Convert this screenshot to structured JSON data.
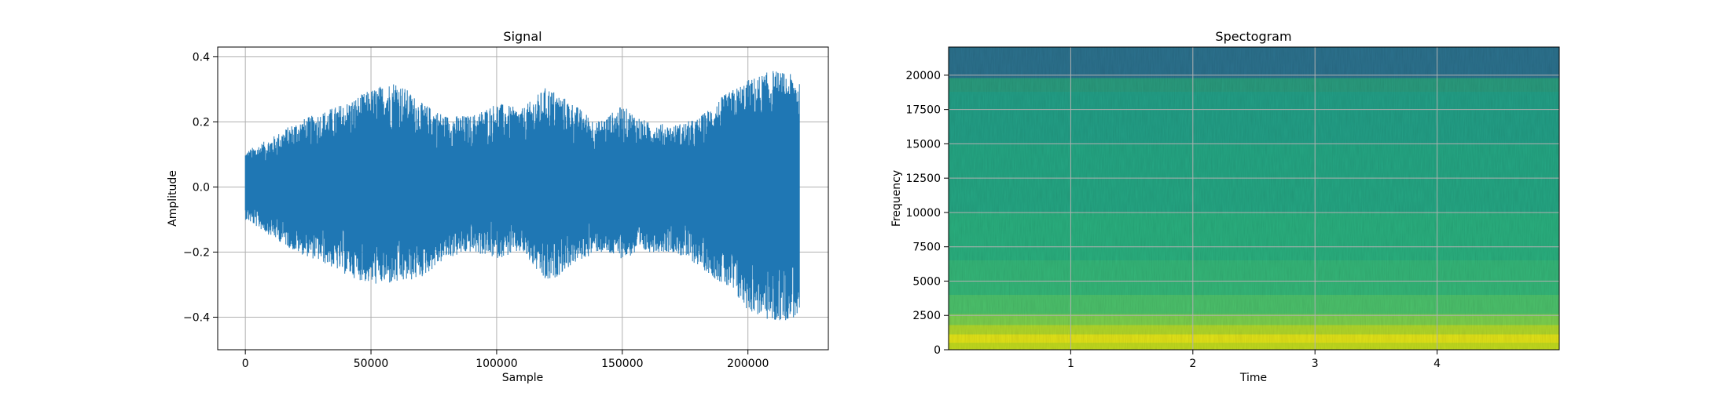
{
  "chart_data": [
    {
      "type": "line",
      "title": "Signal",
      "xlabel": "Sample",
      "ylabel": "Amplitude",
      "xlim": [
        -11000,
        232000
      ],
      "ylim": [
        -0.5,
        0.43
      ],
      "xticks": [
        0,
        50000,
        100000,
        150000,
        200000
      ],
      "xtick_labels": [
        "0",
        "50000",
        "100000",
        "150000",
        "200000"
      ],
      "yticks": [
        -0.4,
        -0.2,
        0.0,
        0.2,
        0.4
      ],
      "ytick_labels": [
        "−0.4",
        "−0.2",
        "0.0",
        "0.2",
        "0.4"
      ],
      "grid": true,
      "color": "#1f77b4",
      "envelope": {
        "x": [
          0,
          10000,
          20000,
          30000,
          40000,
          50000,
          60000,
          70000,
          80000,
          90000,
          100000,
          110000,
          120000,
          130000,
          140000,
          150000,
          160000,
          170000,
          180000,
          190000,
          200000,
          210000,
          220500
        ],
        "upper": [
          0.11,
          0.15,
          0.2,
          0.23,
          0.26,
          0.3,
          0.33,
          0.26,
          0.22,
          0.22,
          0.26,
          0.24,
          0.31,
          0.26,
          0.2,
          0.25,
          0.2,
          0.19,
          0.21,
          0.28,
          0.33,
          0.36,
          0.34
        ],
        "lower": [
          -0.1,
          -0.15,
          -0.2,
          -0.23,
          -0.27,
          -0.3,
          -0.3,
          -0.28,
          -0.22,
          -0.2,
          -0.22,
          -0.2,
          -0.3,
          -0.24,
          -0.2,
          -0.22,
          -0.2,
          -0.2,
          -0.24,
          -0.3,
          -0.38,
          -0.42,
          -0.4
        ]
      }
    },
    {
      "type": "heatmap",
      "title": "Spectogram",
      "xlabel": "Time",
      "ylabel": "Frequency",
      "xlim": [
        0,
        5.0
      ],
      "ylim": [
        0,
        22050
      ],
      "xticks": [
        1,
        2,
        3,
        4
      ],
      "xtick_labels": [
        "1",
        "2",
        "3",
        "4"
      ],
      "yticks": [
        0,
        2500,
        5000,
        7500,
        10000,
        12500,
        15000,
        17500,
        20000
      ],
      "ytick_labels": [
        "0",
        "2500",
        "5000",
        "7500",
        "10000",
        "12500",
        "15000",
        "17500",
        "20000"
      ],
      "grid": true,
      "colormap": "viridis",
      "bands": [
        {
          "from": 0,
          "to": 500,
          "color": "#c3dc1e"
        },
        {
          "from": 500,
          "to": 1100,
          "color": "#e3e418"
        },
        {
          "from": 1100,
          "to": 1800,
          "color": "#b2d82b"
        },
        {
          "from": 1800,
          "to": 2600,
          "color": "#7cd04f"
        },
        {
          "from": 2600,
          "to": 4000,
          "color": "#4cc26c"
        },
        {
          "from": 4000,
          "to": 6500,
          "color": "#35b779"
        },
        {
          "from": 6500,
          "to": 10000,
          "color": "#2ab07f"
        },
        {
          "from": 10000,
          "to": 15000,
          "color": "#25a784"
        },
        {
          "from": 15000,
          "to": 18800,
          "color": "#23a087"
        },
        {
          "from": 18800,
          "to": 19800,
          "color": "#2a9c7e"
        },
        {
          "from": 19800,
          "to": 22050,
          "color": "#2c728e"
        }
      ]
    }
  ]
}
